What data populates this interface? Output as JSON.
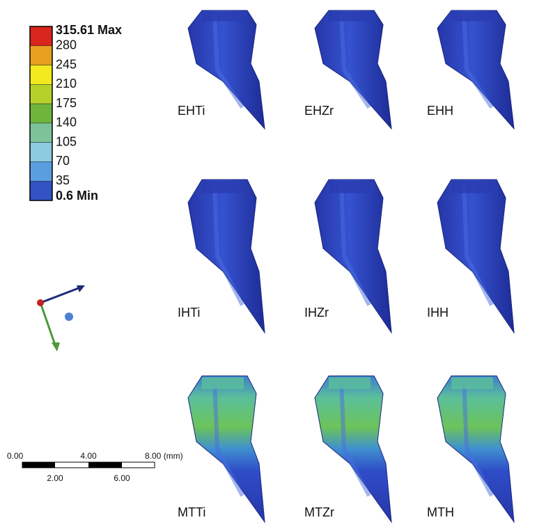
{
  "legend": {
    "labels": [
      "315.61 Max",
      "280",
      "245",
      "210",
      "175",
      "140",
      "105",
      "70",
      "35",
      "0.6 Min"
    ],
    "colors": [
      "#d9261c",
      "#e8a020",
      "#f2ea1e",
      "#b6d22a",
      "#6fb53c",
      "#7cc39a",
      "#8ccbe0",
      "#5a9ee0",
      "#3353c4"
    ]
  },
  "scale_bar": {
    "top": [
      "0.00",
      "4.00",
      "8.00 (mm)"
    ],
    "bottom": [
      "2.00",
      "6.00"
    ]
  },
  "panels": [
    {
      "label": "EHTi"
    },
    {
      "label": "EHZr"
    },
    {
      "label": "EHH"
    },
    {
      "label": "IHTi"
    },
    {
      "label": "IHZr"
    },
    {
      "label": "IHH"
    },
    {
      "label": "MTTi"
    },
    {
      "label": "MTZr"
    },
    {
      "label": "MTH"
    }
  ]
}
